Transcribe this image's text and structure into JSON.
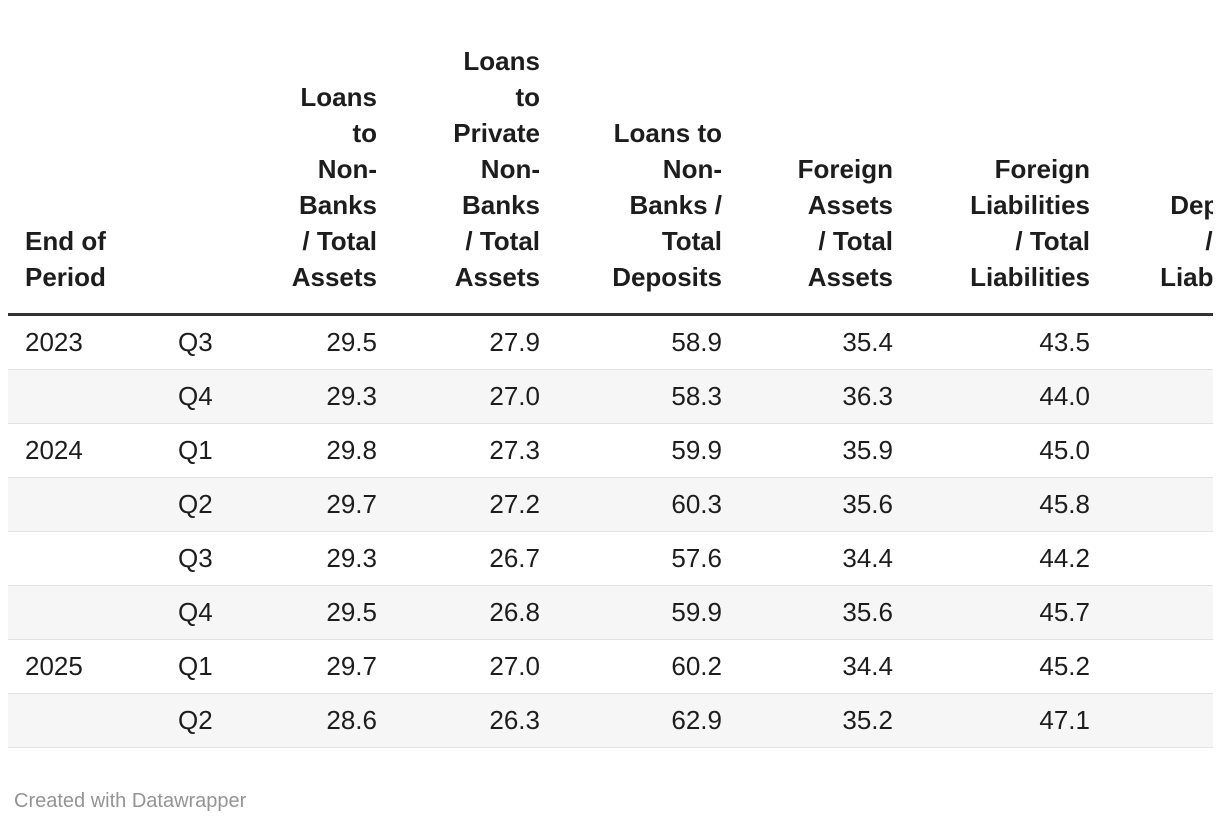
{
  "chart_data": {
    "type": "table",
    "columns": [
      {
        "label": "End of Period",
        "display": "End of\nPeriod",
        "align": "left"
      },
      {
        "label": "",
        "display": "",
        "align": "left"
      },
      {
        "label": "Loans to Non-Banks / Total Assets",
        "display": "Loans\nto\nNon-\nBanks\n/ Total\nAssets",
        "align": "right"
      },
      {
        "label": "Loans to Private Non-Banks / Total Assets",
        "display": "Loans\nto\nPrivate\nNon-\nBanks\n/ Total\nAssets",
        "align": "right"
      },
      {
        "label": "Loans to Non-Banks / Total Deposits",
        "display": "Loans to\nNon-\nBanks /\nTotal\nDeposits",
        "align": "right"
      },
      {
        "label": "Foreign Assets / Total Assets",
        "display": "Foreign\nAssets\n/ Total\nAssets",
        "align": "right"
      },
      {
        "label": "Foreign Liabilities / Total Liabilities",
        "display": "Foreign\nLiabilities\n/ Total\nLiabilities",
        "align": "right"
      },
      {
        "label": "Deposits / Total Liabilities",
        "display": "Deposits\n/ Total\nLiabilities",
        "align": "right"
      }
    ],
    "rows": [
      [
        "2023",
        "Q3",
        "29.5",
        "27.9",
        "58.9",
        "35.4",
        "43.5",
        ""
      ],
      [
        "",
        "Q4",
        "29.3",
        "27.0",
        "58.3",
        "36.3",
        "44.0",
        ""
      ],
      [
        "2024",
        "Q1",
        "29.8",
        "27.3",
        "59.9",
        "35.9",
        "45.0",
        ""
      ],
      [
        "",
        "Q2",
        "29.7",
        "27.2",
        "60.3",
        "35.6",
        "45.8",
        ""
      ],
      [
        "",
        "Q3",
        "29.3",
        "26.7",
        "57.6",
        "34.4",
        "44.2",
        ""
      ],
      [
        "",
        "Q4",
        "29.5",
        "26.8",
        "59.9",
        "35.6",
        "45.7",
        ""
      ],
      [
        "2025",
        "Q1",
        "29.7",
        "27.0",
        "60.2",
        "34.4",
        "45.2",
        ""
      ],
      [
        "",
        "Q2",
        "28.6",
        "26.3",
        "62.9",
        "35.2",
        "47.1",
        ""
      ]
    ]
  },
  "footer": {
    "credit": "Created with Datawrapper"
  },
  "colors": {
    "text": "#1d1d1d",
    "header_border": "#333333",
    "row_divider": "#e3e3e3",
    "zebra": "#f6f6f6",
    "footer_text": "#949494",
    "bg": "#ffffff"
  }
}
